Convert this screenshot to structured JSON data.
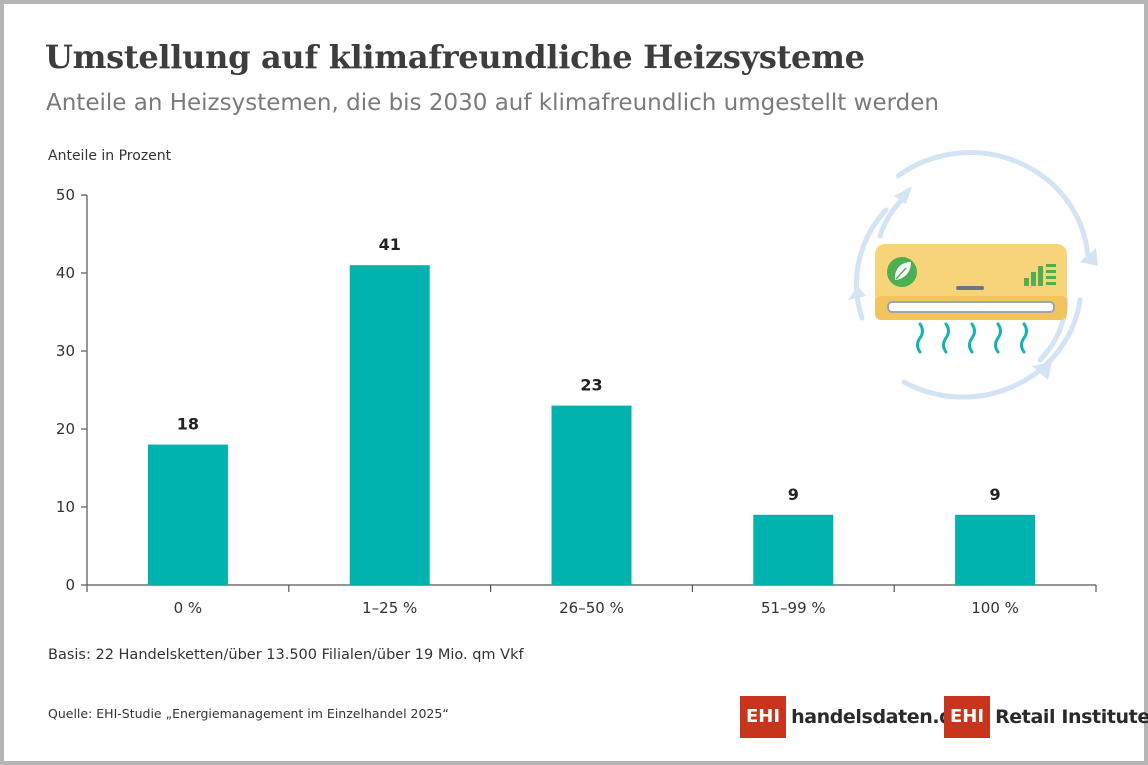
{
  "title": "Umstellung auf klimafreundliche Heizsysteme",
  "subtitle": "Anteile an Heizsystemen, die bis 2030 auf klimafreundlich umgestellt werden",
  "footer": {
    "basis": "Basis: 22 Handelsketten/über 13.500 Filialen/über 19 Mio. qm Vkf",
    "source": "Quelle: EHI-Studie „Energiemanagement im Einzelhandel 2025“"
  },
  "logos": {
    "handelsdaten_box": "EHI",
    "handelsdaten_text": "handelsdaten.de",
    "retail_box": "EHI",
    "retail_text": "Retail Institute",
    "retail_mark": "®"
  },
  "colors": {
    "bar": "#00b3af",
    "logo_red": "#c8341c",
    "illustration_unit": "#f7d37a",
    "illustration_arrows": "#d4e4f4",
    "illustration_leaf": "#4caf50"
  },
  "illustration": {
    "type": "air-conditioner-icon"
  },
  "chart_data": {
    "type": "bar",
    "categories": [
      "0 %",
      "1–25 %",
      "26–50 %",
      "51–99 %",
      "100 %"
    ],
    "values": [
      18,
      41,
      23,
      9,
      9
    ],
    "value_labels": [
      "18",
      "41",
      "23",
      "9",
      "9"
    ],
    "ylabel": "Anteile in Prozent",
    "ylim": [
      0,
      50
    ],
    "yticks": [
      0,
      10,
      20,
      30,
      40,
      50
    ],
    "grid": false,
    "legend": "none"
  }
}
